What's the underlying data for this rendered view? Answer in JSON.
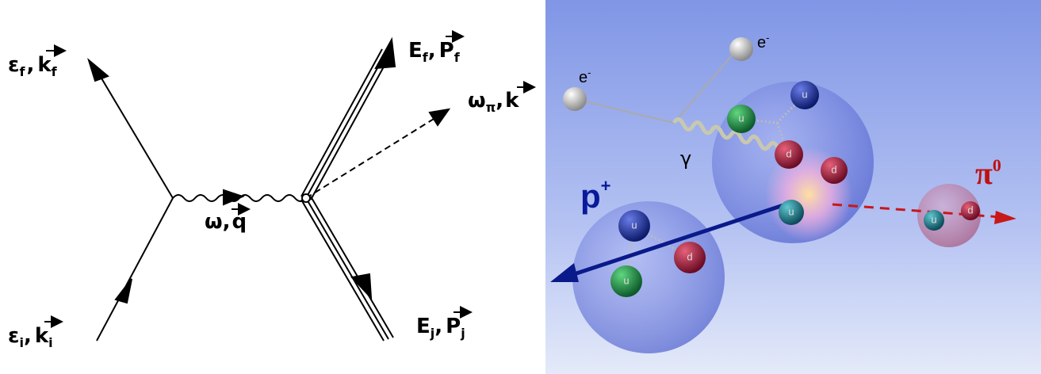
{
  "left_diagram": {
    "labels": [
      {
        "symbol": "ε",
        "sub": "f",
        "sep": ",",
        "vector": "k",
        "vector_sub": "f"
      },
      {
        "symbol": "ω",
        "sep": ",",
        "vector": "q"
      },
      {
        "symbol": "E",
        "sub": "f",
        "sep": ",",
        "vector": "P",
        "vector_sub": "f"
      },
      {
        "symbol": "ω",
        "sub": "π",
        "sep": ",",
        "vector": "k"
      },
      {
        "symbol": "ε",
        "sub": "i",
        "sep": ",",
        "vector": "k",
        "vector_sub": "i"
      },
      {
        "symbol": "E",
        "sub": "j",
        "sep": ",",
        "vector": "P",
        "vector_sub": "j"
      }
    ]
  },
  "right_illustration": {
    "electron_labels": [
      {
        "base": "e",
        "sup": "-"
      },
      {
        "base": "e",
        "sup": "-"
      }
    ],
    "photon_label": "γ",
    "proton_label": {
      "base": "p",
      "sup": "+"
    },
    "pion_label": {
      "base": "π",
      "sup": "0"
    },
    "quarks": [
      "u",
      "d",
      "u",
      "u",
      "u",
      "d",
      "d",
      "u",
      "u",
      "d"
    ]
  }
}
